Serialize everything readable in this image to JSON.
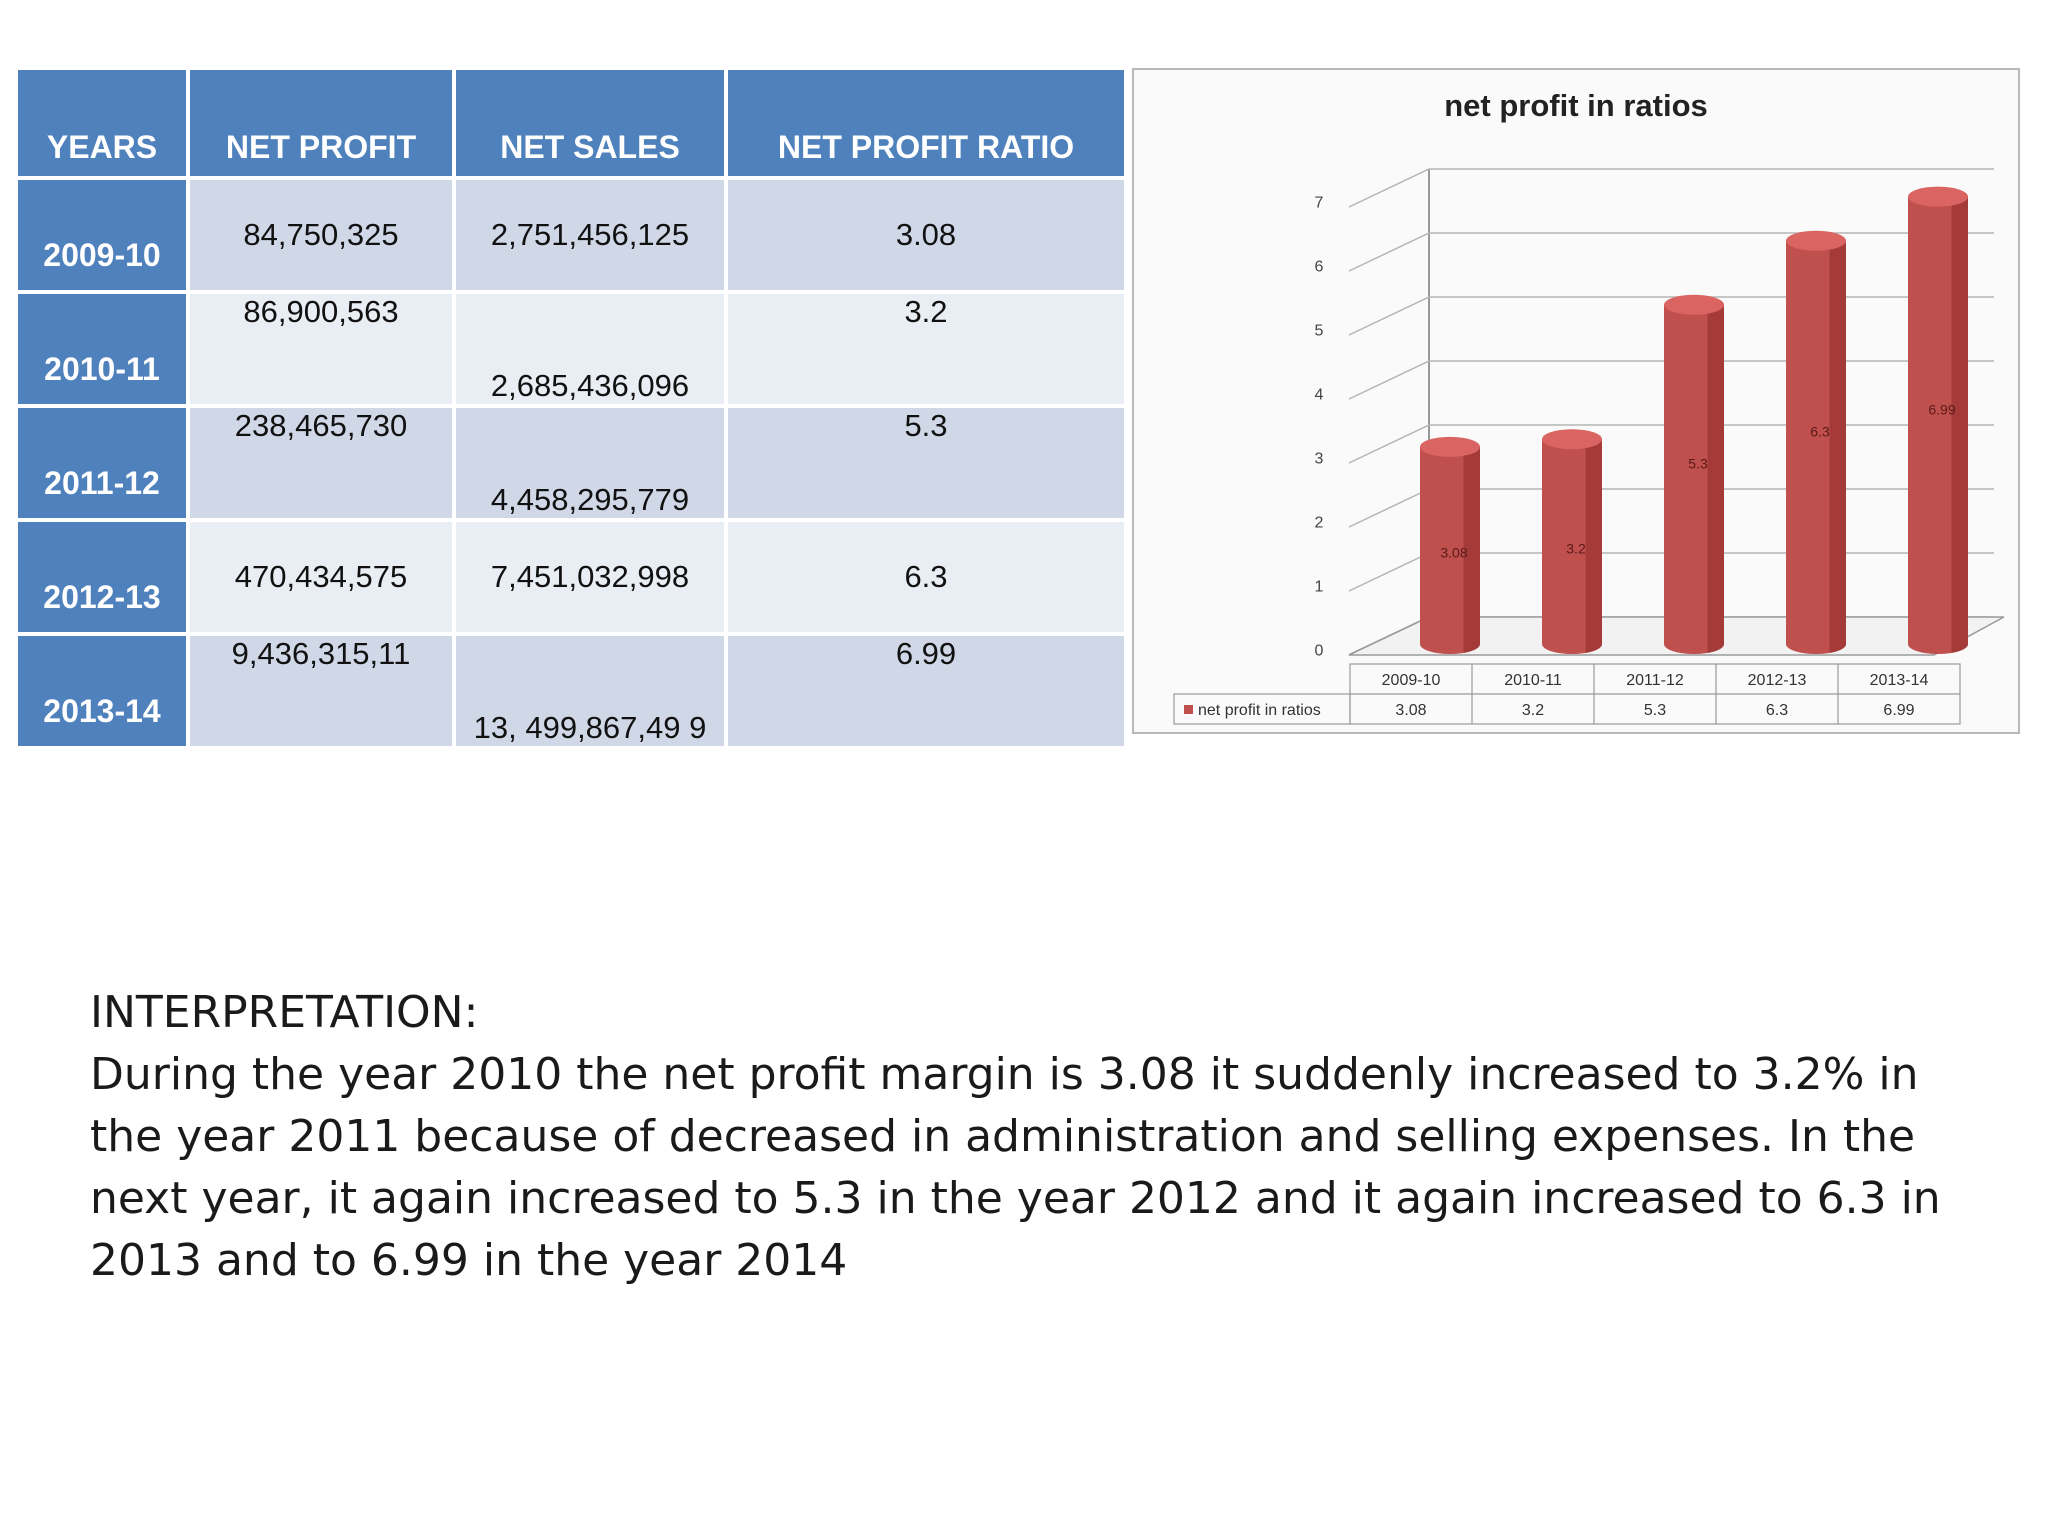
{
  "table": {
    "headers": [
      "YEARS",
      "NET PROFIT",
      "NET SALES",
      "NET PROFIT RATIO"
    ],
    "rows": [
      {
        "year": "2009-10",
        "net_profit": "84,750,325",
        "net_sales": "2,751,456,125",
        "ratio": "3.08"
      },
      {
        "year": "2010-11",
        "net_profit": "86,900,563",
        "net_sales": "2,685,436,096",
        "ratio": "3.2"
      },
      {
        "year": "2011-12",
        "net_profit": "238,465,730",
        "net_sales": "4,458,295,779",
        "ratio": "5.3"
      },
      {
        "year": "2012-13",
        "net_profit": "470,434,575",
        "net_sales": "7,451,032,998",
        "ratio": "6.3"
      },
      {
        "year": "2013-14",
        "net_profit": "9,436,315,11",
        "net_sales": "13, 499,867,49 9",
        "ratio": "6.99"
      }
    ]
  },
  "chart_data": {
    "type": "bar",
    "title": "net profit in ratios",
    "categories": [
      "2009-10",
      "2010-11",
      "2011-12",
      "2012-13",
      "2013-14"
    ],
    "series": [
      {
        "name": "net profit in ratios",
        "values": [
          3.08,
          3.2,
          5.3,
          6.3,
          6.99
        ]
      }
    ],
    "data_labels": [
      "3.08",
      "3.2",
      "5.3",
      "6.3",
      "6.99"
    ],
    "ylim": [
      0,
      7
    ],
    "yticks": [
      "0",
      "1",
      "2",
      "3",
      "4",
      "5",
      "6",
      "7"
    ],
    "grid": true,
    "legend": "data-table-below",
    "bar_color": "#c0504d",
    "bar_top_color": "#d96461",
    "bar_shadow_color": "#8c2a28"
  },
  "interpretation": {
    "title": "INTERPRETATION:",
    "body": "During the year 2010 the net profit margin is 3.08 it suddenly increased to 3.2% in the year 2011 because of decreased in administration and selling expenses. In the next year, it again increased to 5.3 in the year 2012 and it again increased to 6.3 in 2013 and to 6.99 in the year 2014"
  }
}
